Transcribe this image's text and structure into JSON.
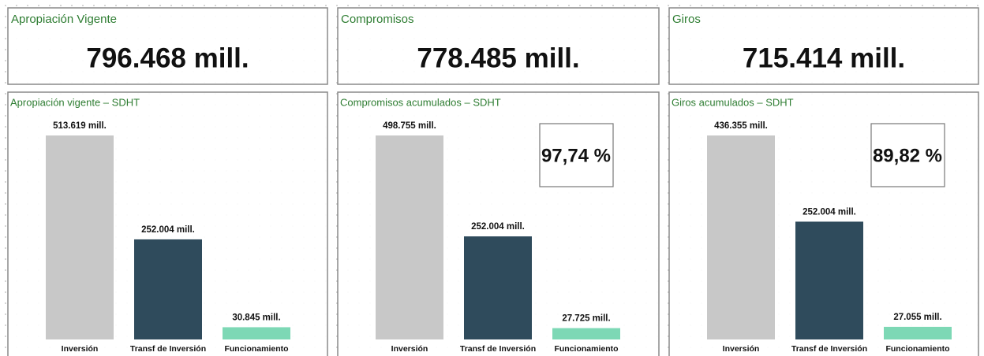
{
  "cards": [
    {
      "title": "Apropiación Vigente",
      "value": "796.468 mill."
    },
    {
      "title": "Compromisos",
      "value": "778.485 mill."
    },
    {
      "title": "Giros",
      "value": "715.414 mill."
    }
  ],
  "chart_data": [
    {
      "type": "bar",
      "title": "Apropiación vigente – SDHT",
      "categories": [
        "Inversión",
        "Transf de Inversión",
        "Funcionamiento"
      ],
      "values": [
        513619,
        252004,
        30845
      ],
      "value_labels": [
        "513.619 mill.",
        "252.004 mill.",
        "30.845 mill."
      ],
      "colors": [
        "#c8c8c8",
        "#2f4b5c",
        "#7dd8b5"
      ]
    },
    {
      "type": "bar",
      "title": "Compromisos acumulados – SDHT",
      "categories": [
        "Inversión",
        "Transf de Inversión",
        "Funcionamiento"
      ],
      "values": [
        498755,
        252004,
        27725
      ],
      "value_labels": [
        "498.755 mill.",
        "252.004 mill.",
        "27.725 mill."
      ],
      "colors": [
        "#c8c8c8",
        "#2f4b5c",
        "#7dd8b5"
      ],
      "annotation": "97,74 %"
    },
    {
      "type": "bar",
      "title": "Giros acumulados – SDHT",
      "categories": [
        "Inversión",
        "Transf de Inversión",
        "Funcionamiento"
      ],
      "values": [
        436355,
        252004,
        27055
      ],
      "value_labels": [
        "436.355 mill.",
        "252.004 mill.",
        "27.055 mill."
      ],
      "colors": [
        "#c8c8c8",
        "#2f4b5c",
        "#7dd8b5"
      ],
      "annotation": "89,82 %"
    }
  ]
}
